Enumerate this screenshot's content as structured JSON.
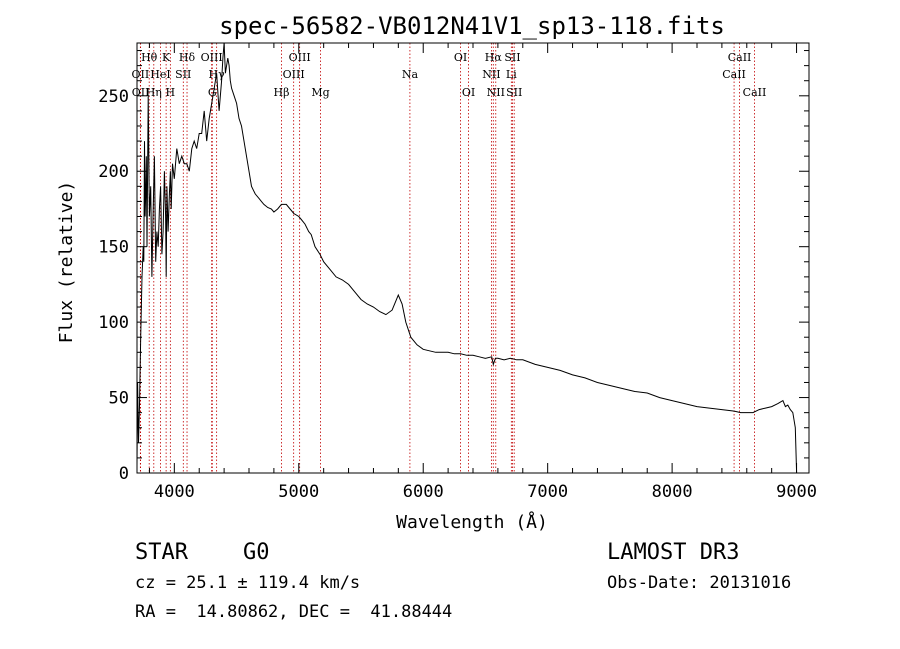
{
  "chart_data": {
    "type": "line",
    "title": "spec-56582-VB012N41V1_sp13-118.fits",
    "xlabel": "Wavelength (Å)",
    "ylabel": "Flux (relative)",
    "xlim": [
      3700,
      9100
    ],
    "ylim": [
      0,
      285
    ],
    "xticks": [
      4000,
      5000,
      6000,
      7000,
      8000,
      9000
    ],
    "xtick_labels": [
      "4000",
      "5000",
      "6000",
      "7000",
      "8000",
      "9000"
    ],
    "yticks": [
      0,
      50,
      100,
      150,
      200,
      250
    ],
    "ytick_labels": [
      "0",
      "50",
      "100",
      "150",
      "200",
      "250"
    ],
    "series": [
      {
        "name": "spectrum",
        "x": [
          3700,
          3705,
          3712,
          3720,
          3730,
          3740,
          3750,
          3755,
          3760,
          3765,
          3770,
          3775,
          3780,
          3790,
          3800,
          3810,
          3820,
          3830,
          3840,
          3850,
          3860,
          3870,
          3880,
          3890,
          3900,
          3910,
          3920,
          3930,
          3935,
          3940,
          3950,
          3960,
          3968,
          3975,
          3985,
          4000,
          4020,
          4040,
          4060,
          4080,
          4100,
          4120,
          4140,
          4160,
          4180,
          4200,
          4220,
          4240,
          4260,
          4280,
          4300,
          4320,
          4340,
          4360,
          4380,
          4390,
          4400,
          4410,
          4420,
          4430,
          4440,
          4450,
          4460,
          4480,
          4500,
          4520,
          4540,
          4560,
          4580,
          4600,
          4620,
          4650,
          4680,
          4700,
          4720,
          4750,
          4780,
          4800,
          4830,
          4860,
          4880,
          4900,
          4930,
          4960,
          5000,
          5020,
          5050,
          5080,
          5100,
          5130,
          5170,
          5200,
          5250,
          5300,
          5350,
          5400,
          5450,
          5500,
          5550,
          5600,
          5650,
          5700,
          5750,
          5800,
          5830,
          5860,
          5900,
          5950,
          6000,
          6050,
          6100,
          6150,
          6200,
          6250,
          6300,
          6350,
          6400,
          6450,
          6500,
          6550,
          6563,
          6580,
          6600,
          6650,
          6700,
          6750,
          6800,
          6900,
          7000,
          7100,
          7200,
          7300,
          7400,
          7500,
          7600,
          7700,
          7800,
          7900,
          8000,
          8100,
          8200,
          8300,
          8400,
          8500,
          8550,
          8600,
          8650,
          8700,
          8750,
          8800,
          8850,
          8870,
          8890,
          8910,
          8930,
          8950,
          8970,
          8990,
          9000
        ],
        "y": [
          5,
          60,
          20,
          45,
          90,
          130,
          150,
          140,
          220,
          170,
          185,
          210,
          150,
          250,
          170,
          190,
          130,
          175,
          210,
          140,
          160,
          150,
          175,
          190,
          145,
          160,
          200,
          170,
          130,
          190,
          160,
          185,
          200,
          175,
          205,
          195,
          215,
          205,
          210,
          205,
          205,
          200,
          215,
          220,
          215,
          225,
          225,
          240,
          220,
          235,
          245,
          255,
          265,
          240,
          260,
          275,
          285,
          265,
          270,
          275,
          270,
          260,
          255,
          250,
          245,
          235,
          230,
          220,
          210,
          200,
          190,
          185,
          182,
          180,
          178,
          176,
          175,
          173,
          175,
          178,
          178,
          178,
          175,
          172,
          170,
          168,
          165,
          160,
          158,
          150,
          145,
          140,
          135,
          130,
          128,
          125,
          120,
          115,
          112,
          110,
          107,
          105,
          108,
          118,
          112,
          100,
          90,
          85,
          82,
          81,
          80,
          80,
          80,
          79,
          79,
          78,
          78,
          77,
          76,
          77,
          72,
          76,
          76,
          75,
          76,
          75,
          75,
          72,
          70,
          68,
          65,
          63,
          60,
          58,
          56,
          54,
          53,
          50,
          48,
          46,
          44,
          43,
          42,
          41,
          40,
          40,
          40,
          42,
          43,
          44,
          46,
          47,
          48,
          44,
          45,
          42,
          40,
          30,
          0
        ]
      }
    ],
    "lines": [
      {
        "name": "OII",
        "x": 3727,
        "row": 2
      },
      {
        "name": "OII",
        "x": 3729,
        "row": 3
      },
      {
        "name": "Hθ",
        "x": 3798,
        "row": 1
      },
      {
        "name": "Hη",
        "x": 3835,
        "row": 3
      },
      {
        "name": "HeI",
        "x": 3889,
        "row": 2
      },
      {
        "name": "K",
        "x": 3934,
        "row": 1
      },
      {
        "name": "H",
        "x": 3968,
        "row": 3
      },
      {
        "name": "SII",
        "x": 4072,
        "row": 2
      },
      {
        "name": "Hδ",
        "x": 4102,
        "row": 1
      },
      {
        "name": "OIII",
        "x": 4300,
        "row": 1
      },
      {
        "name": "Hγ",
        "x": 4340,
        "row": 2
      },
      {
        "name": "G",
        "x": 4305,
        "row": 3
      },
      {
        "name": "Hβ",
        "x": 4861,
        "row": 3
      },
      {
        "name": "OIII",
        "x": 4959,
        "row": 2
      },
      {
        "name": "OIII",
        "x": 5007,
        "row": 1
      },
      {
        "name": "Mg",
        "x": 5175,
        "row": 3
      },
      {
        "name": "Na",
        "x": 5893,
        "row": 2
      },
      {
        "name": "OI",
        "x": 6300,
        "row": 1
      },
      {
        "name": "OI",
        "x": 6364,
        "row": 3
      },
      {
        "name": "NII",
        "x": 6548,
        "row": 2
      },
      {
        "name": "Hα",
        "x": 6563,
        "row": 1
      },
      {
        "name": "NII",
        "x": 6583,
        "row": 3
      },
      {
        "name": "SII",
        "x": 6717,
        "row": 1
      },
      {
        "name": "Li",
        "x": 6708,
        "row": 2
      },
      {
        "name": "SII",
        "x": 6731,
        "row": 3
      },
      {
        "name": "CaII",
        "x": 8498,
        "row": 2
      },
      {
        "name": "CaII",
        "x": 8542,
        "row": 1
      },
      {
        "name": "CaII",
        "x": 8662,
        "row": 3
      }
    ]
  },
  "info": {
    "class_label": "STAR",
    "subclass": "G0",
    "survey": "LAMOST DR3",
    "cz": "cz = 25.1 ± 119.4 km/s",
    "obs_date": "Obs-Date: 20131016",
    "coords": "RA =  14.80862, DEC =  41.88444"
  }
}
